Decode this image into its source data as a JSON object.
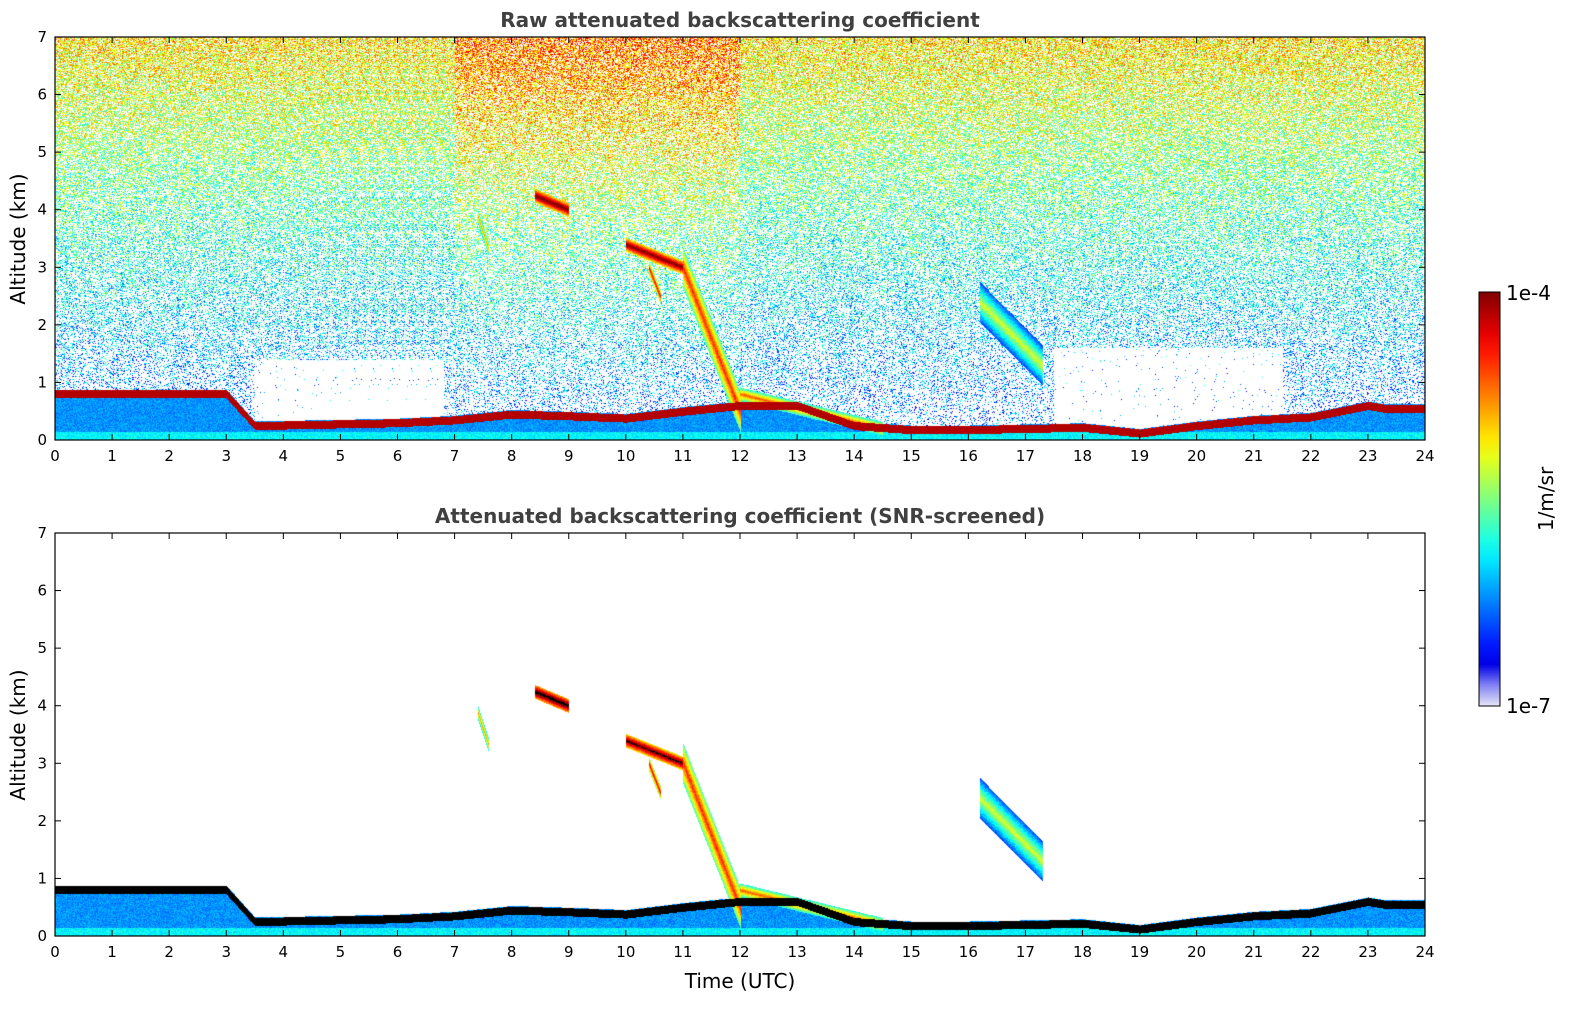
{
  "chart_data": [
    {
      "type": "heatmap",
      "title": "Raw attenuated backscattering coefficient",
      "xlabel": "",
      "ylabel": "Altitude (km)",
      "xlim": [
        0,
        24
      ],
      "ylim": [
        0,
        7
      ],
      "xticks": [
        "0",
        "1",
        "2",
        "3",
        "4",
        "5",
        "6",
        "7",
        "8",
        "9",
        "10",
        "11",
        "12",
        "13",
        "14",
        "15",
        "16",
        "17",
        "18",
        "19",
        "20",
        "21",
        "22",
        "23",
        "24"
      ],
      "yticks": [
        "0",
        "1",
        "2",
        "3",
        "4",
        "5",
        "6",
        "7"
      ],
      "grid": false,
      "features": [
        {
          "kind": "noise_field",
          "description_values": {
            "top_level": 0.6,
            "base_level": 0.2
          }
        },
        {
          "kind": "boundary_layer",
          "x": [
            0,
            1,
            2,
            3,
            3.5,
            5,
            6,
            7,
            8,
            9,
            10,
            11,
            12,
            13,
            14,
            15,
            16,
            17,
            18,
            19,
            20,
            21,
            22,
            23,
            23.3
          ],
          "y": [
            0.8,
            0.8,
            0.8,
            0.8,
            0.25,
            0.28,
            0.3,
            0.35,
            0.45,
            0.42,
            0.38,
            0.5,
            0.6,
            0.6,
            0.25,
            0.18,
            0.18,
            0.2,
            0.22,
            0.12,
            0.25,
            0.35,
            0.4,
            0.6,
            0.55
          ],
          "intensity": 0.95
        },
        {
          "kind": "cloud",
          "x": [
            8.4,
            9.0
          ],
          "y": [
            4.25,
            4.0
          ],
          "intensity": 1.0
        },
        {
          "kind": "cloud",
          "x": [
            10.0,
            11.0
          ],
          "y": [
            3.4,
            3.0
          ],
          "intensity": 0.98
        },
        {
          "kind": "cloud",
          "x": [
            7.4,
            7.6
          ],
          "y": [
            3.9,
            3.3
          ],
          "intensity": 0.7
        },
        {
          "kind": "cloud",
          "x": [
            10.4,
            10.6
          ],
          "y": [
            3.0,
            2.5
          ],
          "intensity": 0.85
        },
        {
          "kind": "cloud",
          "x": [
            11.0,
            12.0
          ],
          "y": [
            3.0,
            0.5
          ],
          "intensity": 0.8
        },
        {
          "kind": "cloud",
          "x": [
            16.2,
            17.3
          ],
          "y": [
            2.4,
            1.3
          ],
          "intensity": 0.55
        },
        {
          "kind": "cloud",
          "x": [
            12.0,
            14.5
          ],
          "y": [
            0.8,
            0.2
          ],
          "intensity": 0.75
        }
      ]
    },
    {
      "type": "heatmap",
      "title": "Attenuated backscattering coefficient (SNR-screened)",
      "xlabel": "Time (UTC)",
      "ylabel": "Altitude (km)",
      "xlim": [
        0,
        24
      ],
      "ylim": [
        0,
        7
      ],
      "xticks": [
        "0",
        "1",
        "2",
        "3",
        "4",
        "5",
        "6",
        "7",
        "8",
        "9",
        "10",
        "11",
        "12",
        "13",
        "14",
        "15",
        "16",
        "17",
        "18",
        "19",
        "20",
        "21",
        "22",
        "23",
        "24"
      ],
      "yticks": [
        "0",
        "1",
        "2",
        "3",
        "4",
        "5",
        "6",
        "7"
      ],
      "grid": false,
      "features": [
        {
          "kind": "boundary_layer",
          "x": [
            0,
            1,
            2,
            3,
            3.5,
            5,
            6,
            7,
            8,
            9,
            10,
            11,
            12,
            13,
            14,
            15,
            16,
            17,
            18,
            19,
            20,
            21,
            22,
            23,
            23.3
          ],
          "y": [
            0.8,
            0.8,
            0.8,
            0.8,
            0.25,
            0.28,
            0.3,
            0.35,
            0.45,
            0.42,
            0.38,
            0.5,
            0.6,
            0.6,
            0.25,
            0.18,
            0.18,
            0.2,
            0.22,
            0.12,
            0.25,
            0.35,
            0.4,
            0.6,
            0.55
          ],
          "intensity": 1.05
        },
        {
          "kind": "cloud",
          "x": [
            8.4,
            9.0
          ],
          "y": [
            4.25,
            4.0
          ],
          "intensity": 1.05
        },
        {
          "kind": "cloud",
          "x": [
            10.0,
            11.0
          ],
          "y": [
            3.4,
            3.0
          ],
          "intensity": 1.0
        },
        {
          "kind": "cloud",
          "x": [
            7.4,
            7.6
          ],
          "y": [
            3.9,
            3.3
          ],
          "intensity": 0.7
        },
        {
          "kind": "cloud",
          "x": [
            10.4,
            10.6
          ],
          "y": [
            3.0,
            2.5
          ],
          "intensity": 0.85
        },
        {
          "kind": "cloud",
          "x": [
            11.0,
            12.0
          ],
          "y": [
            3.0,
            0.5
          ],
          "intensity": 0.8
        },
        {
          "kind": "cloud",
          "x": [
            16.2,
            17.3
          ],
          "y": [
            2.4,
            1.3
          ],
          "intensity": 0.55
        },
        {
          "kind": "cloud",
          "x": [
            12.0,
            14.5
          ],
          "y": [
            0.8,
            0.2
          ],
          "intensity": 0.75
        }
      ]
    }
  ],
  "colorbar": {
    "label": "1/m/sr",
    "max_label": "1e-4",
    "min_label": "1e-7",
    "scale": "log",
    "range": [
      1e-07,
      0.0001
    ],
    "colormap": "jet",
    "colormap_stops": [
      "#e6e6f5",
      "#0000ff",
      "#00ffff",
      "#ffff00",
      "#ff0000",
      "#800000"
    ]
  }
}
